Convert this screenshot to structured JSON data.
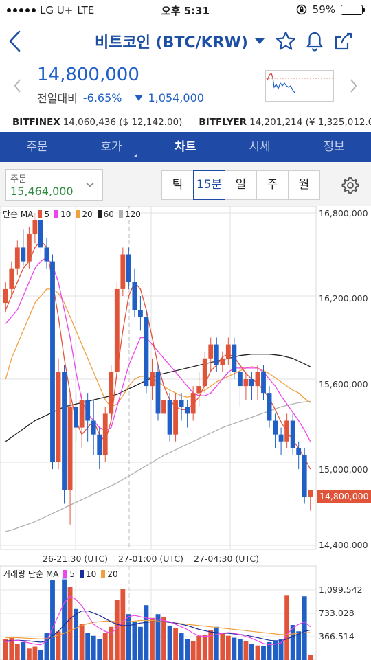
{
  "status_bar": {
    "carrier": "LG U+",
    "network": "LTE",
    "time": "오후 5:31",
    "battery": "59%",
    "battery_level": 0.59
  },
  "header": {
    "title": "비트코인 (BTC/KRW)",
    "back_icon": "chevron-left-icon",
    "actions": [
      "star-icon",
      "bell-icon",
      "share-icon"
    ]
  },
  "price": {
    "current": "14,800,000",
    "change_label": "전일대비",
    "change_pct": "-6.65%",
    "change_amount": "1,054,000"
  },
  "exchanges": [
    {
      "name": "BITFINEX",
      "value": "14,060,436 ($ 12,142.00)"
    },
    {
      "name": "BITFLYER",
      "value": "14,201,214 (¥ 1,325,012.00)"
    }
  ],
  "tabs": [
    {
      "label": "주문",
      "active": false
    },
    {
      "label": "호가",
      "active": false
    },
    {
      "label": "차트",
      "active": true
    },
    {
      "label": "시세",
      "active": false
    },
    {
      "label": "정보",
      "active": false
    }
  ],
  "order": {
    "label": "주문",
    "value": "15,464,000"
  },
  "periods": [
    {
      "label": "틱",
      "active": false
    },
    {
      "label": "15분",
      "active": true
    },
    {
      "label": "일",
      "active": false
    },
    {
      "label": "주",
      "active": false
    },
    {
      "label": "월",
      "active": false
    }
  ],
  "colors": {
    "up": "#e0543a",
    "down": "#1f5fc6",
    "ma5": "#e0543a",
    "ma10": "#ee44ee",
    "ma20": "#f0a040",
    "ma60": "#222222",
    "ma120": "#b0b0b0",
    "vol_ma5": "#ee44ee",
    "vol_ma10": "#1a2e9a",
    "vol_ma20": "#f0a040"
  },
  "price_legend": {
    "prefix": "단순 MA",
    "periods": [
      "5",
      "10",
      "20",
      "60",
      "120"
    ]
  },
  "volume_legend": {
    "prefix": "거래량 단순 MA",
    "periods": [
      "5",
      "10",
      "20"
    ]
  },
  "chart_data": {
    "type": "candlestick",
    "interval": "15분",
    "y_ticks": [
      "16,800,000",
      "16,200,000",
      "15,600,000",
      "15,000,000",
      "14,400,000"
    ],
    "y_tick_values": [
      16800000,
      16200000,
      15600000,
      15000000,
      14400000
    ],
    "last_price_label": "14,800,000",
    "x_ticks": [
      "26-21:30 (UTC)",
      "27-01:00 (UTC)",
      "27-04:30 (UTC)"
    ],
    "candles": [
      [
        16150000,
        16300000,
        16080000,
        16250000
      ],
      [
        16250000,
        16450000,
        16200000,
        16400000
      ],
      [
        16400000,
        16600000,
        16350000,
        16550000
      ],
      [
        16550000,
        16680000,
        16420000,
        16450000
      ],
      [
        16450000,
        16700000,
        16400000,
        16650000
      ],
      [
        16650000,
        16800000,
        16580000,
        16750000
      ],
      [
        16750000,
        16780000,
        16500000,
        16550000
      ],
      [
        16550000,
        16620000,
        16400000,
        16450000
      ],
      [
        16450000,
        16500000,
        14950000,
        15000000
      ],
      [
        15000000,
        15750000,
        14950000,
        15650000
      ],
      [
        15650000,
        15700000,
        14700000,
        14800000
      ],
      [
        14800000,
        15500000,
        14550000,
        15400000
      ],
      [
        15400000,
        15500000,
        15150000,
        15250000
      ],
      [
        15250000,
        15500000,
        15100000,
        15450000
      ],
      [
        15450000,
        15500000,
        15150000,
        15300000
      ],
      [
        15300000,
        15450000,
        15050000,
        15200000
      ],
      [
        15200000,
        15250000,
        14950000,
        15050000
      ],
      [
        15050000,
        15400000,
        15000000,
        15350000
      ],
      [
        15350000,
        15700000,
        15300000,
        15650000
      ],
      [
        15650000,
        16300000,
        15600000,
        16250000
      ],
      [
        16250000,
        16550000,
        16200000,
        16500000
      ],
      [
        16500000,
        16550000,
        16250000,
        16300000
      ],
      [
        16300000,
        16400000,
        16050000,
        16100000
      ],
      [
        16100000,
        16200000,
        15950000,
        16050000
      ],
      [
        16050000,
        16100000,
        15500000,
        15550000
      ],
      [
        15550000,
        15750000,
        15450000,
        15650000
      ],
      [
        15650000,
        15700000,
        15300000,
        15350000
      ],
      [
        15350000,
        15500000,
        15150000,
        15450000
      ],
      [
        15450000,
        15500000,
        15150000,
        15200000
      ],
      [
        15200000,
        15500000,
        15150000,
        15450000
      ],
      [
        15450000,
        15500000,
        15300000,
        15400000
      ],
      [
        15400000,
        15450000,
        15250000,
        15350000
      ],
      [
        15350000,
        15550000,
        15300000,
        15500000
      ],
      [
        15500000,
        15650000,
        15400000,
        15550000
      ],
      [
        15550000,
        15800000,
        15500000,
        15750000
      ],
      [
        15750000,
        15900000,
        15650000,
        15850000
      ],
      [
        15850000,
        15900000,
        15650000,
        15700000
      ],
      [
        15700000,
        15800000,
        15650000,
        15750000
      ],
      [
        15750000,
        15900000,
        15700000,
        15850000
      ],
      [
        15850000,
        15900000,
        15600000,
        15650000
      ],
      [
        15650000,
        15700000,
        15400000,
        15550000
      ],
      [
        15550000,
        15650000,
        15450000,
        15600000
      ],
      [
        15600000,
        15650000,
        15450000,
        15550000
      ],
      [
        15550000,
        15700000,
        15450000,
        15650000
      ],
      [
        15650000,
        15700000,
        15450000,
        15500000
      ],
      [
        15500000,
        15550000,
        15250000,
        15300000
      ],
      [
        15300000,
        15350000,
        15100000,
        15200000
      ],
      [
        15200000,
        15250000,
        15050000,
        15150000
      ],
      [
        15150000,
        15350000,
        15100000,
        15300000
      ],
      [
        15300000,
        15350000,
        15050000,
        15100000
      ],
      [
        15100000,
        15150000,
        14950000,
        15050000
      ],
      [
        15050000,
        15100000,
        14700000,
        14750000
      ],
      [
        14750000,
        14800000,
        14650000,
        14800000
      ]
    ],
    "ma": {
      "5": [
        16100000,
        16200000,
        16300000,
        16400000,
        16450000,
        16550000,
        16600000,
        16550000,
        16300000,
        16050000,
        15750000,
        15500000,
        15300000,
        15200000,
        15250000,
        15300000,
        15200000,
        15150000,
        15300000,
        15650000,
        15950000,
        16200000,
        16300000,
        16250000,
        16100000,
        15900000,
        15700000,
        15550000,
        15450000,
        15400000,
        15380000,
        15380000,
        15420000,
        15470000,
        15560000,
        15660000,
        15700000,
        15760000,
        15780000,
        15760000,
        15700000,
        15640000,
        15600000,
        15570000,
        15520000,
        15460000,
        15380000,
        15290000,
        15220000,
        15160000,
        15100000,
        15030000,
        14950000
      ],
      "10": [
        16000000,
        16050000,
        16100000,
        16200000,
        16300000,
        16400000,
        16450000,
        16480000,
        16420000,
        16300000,
        16100000,
        15900000,
        15650000,
        15450000,
        15350000,
        15300000,
        15250000,
        15230000,
        15250000,
        15400000,
        15550000,
        15700000,
        15800000,
        15900000,
        15900000,
        15850000,
        15800000,
        15750000,
        15700000,
        15650000,
        15600000,
        15550000,
        15500000,
        15480000,
        15480000,
        15500000,
        15550000,
        15600000,
        15650000,
        15680000,
        15680000,
        15680000,
        15680000,
        15680000,
        15650000,
        15600000,
        15550000,
        15480000,
        15420000,
        15360000,
        15300000,
        15230000,
        15150000
      ],
      "20": [
        15600000,
        15750000,
        15850000,
        15950000,
        16050000,
        16150000,
        16200000,
        16250000,
        16250000,
        16220000,
        16150000,
        16050000,
        15950000,
        15850000,
        15750000,
        15650000,
        15550000,
        15450000,
        15400000,
        15420000,
        15480000,
        15550000,
        15600000,
        15620000,
        15620000,
        15600000,
        15580000,
        15550000,
        15520000,
        15500000,
        15480000,
        15470000,
        15480000,
        15500000,
        15520000,
        15550000,
        15580000,
        15600000,
        15620000,
        15640000,
        15660000,
        15680000,
        15690000,
        15680000,
        15660000,
        15640000,
        15610000,
        15580000,
        15550000,
        15520000,
        15500000,
        15460000,
        15430000
      ],
      "60": [
        15150000,
        15180000,
        15210000,
        15240000,
        15270000,
        15300000,
        15320000,
        15340000,
        15360000,
        15380000,
        15400000,
        15410000,
        15420000,
        15430000,
        15440000,
        15450000,
        15460000,
        15470000,
        15480000,
        15490000,
        15510000,
        15530000,
        15550000,
        15570000,
        15590000,
        15610000,
        15630000,
        15640000,
        15650000,
        15660000,
        15670000,
        15680000,
        15690000,
        15700000,
        15710000,
        15720000,
        15730000,
        15740000,
        15750000,
        15760000,
        15770000,
        15775000,
        15780000,
        15780000,
        15780000,
        15780000,
        15775000,
        15770000,
        15760000,
        15750000,
        15730000,
        15710000,
        15690000
      ],
      "120": [
        14500000,
        14510000,
        14525000,
        14540000,
        14555000,
        14570000,
        14590000,
        14610000,
        14630000,
        14650000,
        14670000,
        14690000,
        14710000,
        14730000,
        14750000,
        14770000,
        14790000,
        14810000,
        14830000,
        14850000,
        14875000,
        14900000,
        14925000,
        14950000,
        14975000,
        15000000,
        15025000,
        15050000,
        15070000,
        15090000,
        15110000,
        15130000,
        15150000,
        15170000,
        15190000,
        15210000,
        15230000,
        15250000,
        15265000,
        15280000,
        15295000,
        15310000,
        15325000,
        15340000,
        15355000,
        15370000,
        15385000,
        15400000,
        15410000,
        15420000,
        15430000,
        15435000,
        15440000
      ]
    },
    "volume_ticks": [
      "1,099.542",
      "733.028",
      "366.514"
    ],
    "volume_tick_values": [
      1099.542,
      733.028,
      366.514
    ],
    "volume": [
      330,
      360,
      250,
      280,
      180,
      210,
      160,
      420,
      1250,
      450,
      1300,
      1150,
      800,
      560,
      430,
      380,
      330,
      430,
      520,
      940,
      1120,
      720,
      600,
      520,
      860,
      660,
      720,
      680,
      540,
      500,
      420,
      330,
      300,
      380,
      400,
      470,
      520,
      430,
      380,
      350,
      330,
      300,
      250,
      230,
      220,
      280,
      310,
      330,
      1010,
      550,
      450,
      1000,
      80
    ],
    "vol_ma": {
      "5": [
        280,
        300,
        310,
        290,
        270,
        250,
        240,
        300,
        500,
        700,
        900,
        1000,
        950,
        850,
        700,
        560,
        500,
        450,
        420,
        500,
        600,
        680,
        700,
        680,
        660,
        650,
        640,
        620,
        600,
        560,
        520,
        480,
        420,
        380,
        370,
        380,
        400,
        420,
        430,
        420,
        400,
        370,
        340,
        300,
        260,
        240,
        250,
        270,
        400,
        500,
        560,
        600,
        520
      ],
      "10": [
        300,
        305,
        310,
        305,
        300,
        290,
        280,
        300,
        380,
        450,
        550,
        650,
        720,
        770,
        770,
        740,
        700,
        650,
        600,
        560,
        540,
        540,
        560,
        580,
        590,
        600,
        600,
        600,
        590,
        580,
        560,
        540,
        510,
        480,
        460,
        440,
        430,
        420,
        420,
        410,
        400,
        390,
        370,
        350,
        330,
        310,
        300,
        300,
        330,
        370,
        410,
        450,
        470
      ],
      "20": [
        350,
        350,
        350,
        345,
        340,
        335,
        330,
        335,
        360,
        390,
        420,
        460,
        500,
        540,
        570,
        590,
        600,
        610,
        610,
        600,
        600,
        600,
        610,
        620,
        620,
        620,
        610,
        600,
        590,
        580,
        570,
        560,
        550,
        540,
        530,
        520,
        510,
        500,
        490,
        480,
        470,
        460,
        450,
        440,
        430,
        420,
        410,
        400,
        400,
        410,
        420,
        430,
        430
      ]
    }
  }
}
